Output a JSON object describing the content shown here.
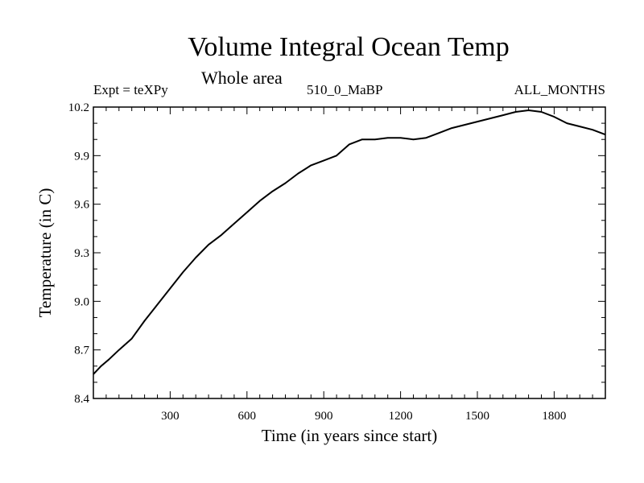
{
  "chart_data": {
    "type": "line",
    "title": "Volume Integral Ocean Temp",
    "subtitle": "Whole area",
    "annotations": {
      "left": "Expt = teXPy",
      "center": "510_0_MaBP",
      "right": "ALL_MONTHS"
    },
    "xlabel": "Time (in years since start)",
    "ylabel": "Temperature (in C)",
    "xlim": [
      0,
      2000
    ],
    "ylim": [
      8.4,
      10.2
    ],
    "x_ticks": [
      300,
      600,
      900,
      1200,
      1500,
      1800
    ],
    "y_ticks": [
      8.4,
      8.7,
      9.0,
      9.3,
      9.6,
      9.9,
      10.2
    ],
    "y_tick_labels": [
      "8.4",
      "8.7",
      "9.0",
      "9.3",
      "9.6",
      "9.9",
      "10.2"
    ],
    "grid": false,
    "series": [
      {
        "x": [
          0,
          30,
          60,
          100,
          150,
          200,
          250,
          300,
          350,
          400,
          450,
          500,
          550,
          600,
          650,
          700,
          750,
          800,
          850,
          900,
          950,
          1000,
          1050,
          1100,
          1150,
          1200,
          1250,
          1300,
          1350,
          1400,
          1450,
          1500,
          1550,
          1600,
          1650,
          1700,
          1750,
          1800,
          1850,
          1900,
          1950,
          2000
        ],
        "y": [
          8.55,
          8.6,
          8.64,
          8.7,
          8.77,
          8.88,
          8.98,
          9.08,
          9.18,
          9.27,
          9.35,
          9.41,
          9.48,
          9.55,
          9.62,
          9.68,
          9.73,
          9.79,
          9.84,
          9.87,
          9.9,
          9.97,
          10.0,
          10.0,
          10.01,
          10.01,
          10.0,
          10.01,
          10.04,
          10.07,
          10.09,
          10.11,
          10.13,
          10.15,
          10.17,
          10.18,
          10.17,
          10.14,
          10.1,
          10.08,
          10.06,
          10.03
        ]
      }
    ]
  }
}
